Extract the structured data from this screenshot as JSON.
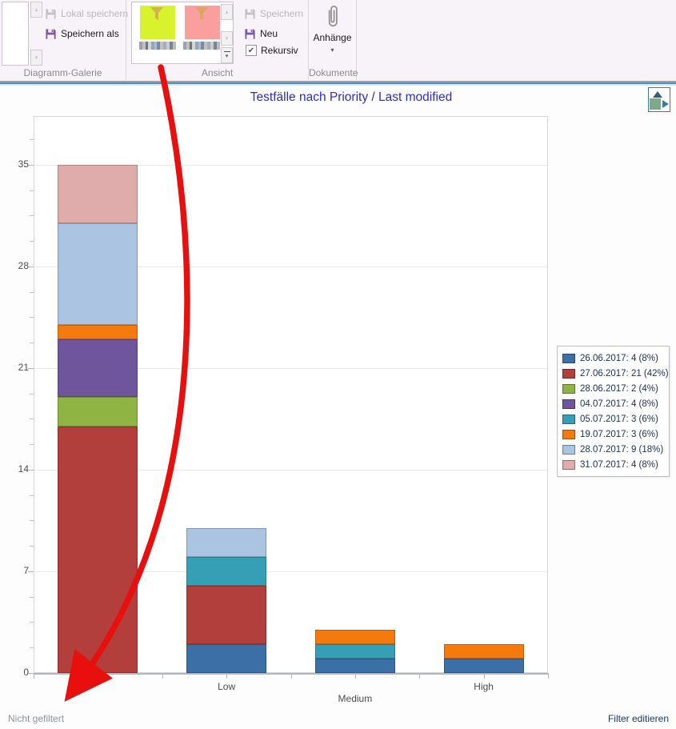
{
  "ribbon": {
    "groups": {
      "gallery": {
        "label": "Diagramm-Galerie",
        "save_local": "Lokal speichern",
        "save_as": "Speichern als"
      },
      "view": {
        "label": "Ansicht",
        "save": "Speichern",
        "new": "Neu",
        "recursive": "Rekursiv",
        "recursive_checked": true,
        "thumbnails": [
          {
            "name": "filter-view-green",
            "color": "#d9f22e"
          },
          {
            "name": "filter-view-red",
            "color": "#fb9e9e"
          }
        ]
      },
      "documents": {
        "label": "Dokumente",
        "attachments": "Anhänge"
      }
    }
  },
  "icons": {
    "up_small": "▴",
    "down_small": "▾",
    "dropdown_caret": "▾",
    "check": "✔"
  },
  "colors": {
    "annotation_arrow": "#e80f0f",
    "title_blue": "#2b2bd6",
    "ribbon_accent_purple": "#7e57a5"
  },
  "footer": {
    "left": "Nicht gefiltert",
    "right": "Filter editieren"
  },
  "chart_data": {
    "type": "bar",
    "stacked": true,
    "title": "Testfälle nach Priority / Last modified",
    "xlabel": "",
    "ylabel": "",
    "categories": [
      "",
      "Low",
      "Medium",
      "High"
    ],
    "series": [
      {
        "name": "26.06.2017",
        "label": "26.06.2017: 4 (8%)",
        "color": "#3c6fa5",
        "values": [
          0,
          2,
          1,
          1
        ]
      },
      {
        "name": "27.06.2017",
        "label": "27.06.2017: 21 (42%)",
        "color": "#b23f3c",
        "values": [
          17,
          4,
          0,
          0
        ]
      },
      {
        "name": "28.06.2017",
        "label": "28.06.2017: 2 (4%)",
        "color": "#8fb444",
        "values": [
          2,
          0,
          0,
          0
        ]
      },
      {
        "name": "04.07.2017",
        "label": "04.07.2017: 4 (8%)",
        "color": "#6f559b",
        "values": [
          4,
          0,
          0,
          0
        ]
      },
      {
        "name": "05.07.2017",
        "label": "05.07.2017: 3 (6%)",
        "color": "#369fb5",
        "values": [
          0,
          2,
          1,
          0
        ]
      },
      {
        "name": "19.07.2017",
        "label": "19.07.2017: 3 (6%)",
        "color": "#f57a0d",
        "values": [
          1,
          0,
          1,
          1
        ]
      },
      {
        "name": "28.07.2017",
        "label": "28.07.2017: 9 (18%)",
        "color": "#aac4e2",
        "values": [
          7,
          2,
          0,
          0
        ]
      },
      {
        "name": "31.07.2017",
        "label": "31.07.2017: 4 (8%)",
        "color": "#dfabab",
        "values": [
          4,
          0,
          0,
          0
        ]
      }
    ],
    "bar_totals": [
      35,
      10,
      3,
      2
    ],
    "y_ticks": [
      0,
      7,
      14,
      21,
      28,
      35
    ],
    "y_minor_step": 1.75,
    "ylim": [
      0,
      38.36
    ],
    "grid": "horizontal",
    "legend_position": "right"
  }
}
